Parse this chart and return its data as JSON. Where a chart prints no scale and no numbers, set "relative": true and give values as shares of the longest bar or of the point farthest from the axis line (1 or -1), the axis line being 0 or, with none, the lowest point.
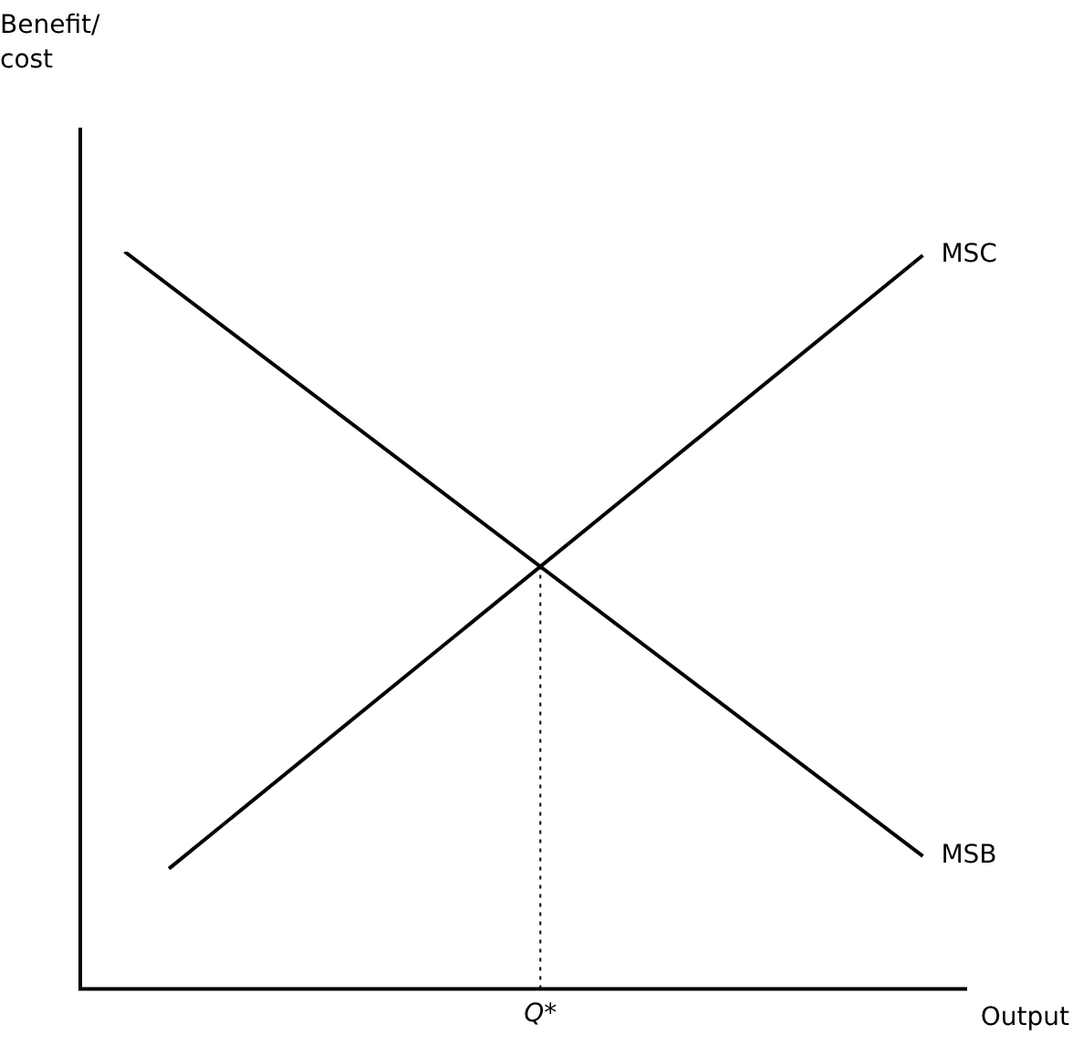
{
  "chart_data": {
    "type": "line",
    "relative": true,
    "annotations": [
      "Benefit/\ncost"
    ],
    "xlabel": "Output",
    "grid": false,
    "legend": false,
    "marker": "none",
    "line_style": "solid",
    "categories": [
      null,
      null,
      null,
      null,
      null,
      null,
      null,
      null,
      null,
      null,
      null,
      null,
      null,
      null,
      null,
      null,
      null,
      null,
      null,
      null,
      null
    ],
    "series": [
      {
        "name": "MSB",
        "color": "#000000",
        "values": [
          null,
          1,
          null,
          null,
          null,
          null,
          null,
          null,
          null,
          null,
          null,
          null,
          null,
          null,
          null,
          null,
          null,
          null,
          null,
          0.18,
          null
        ]
      },
      {
        "name": "MSC",
        "color": "#000000",
        "values": [
          null,
          null,
          0.163,
          null,
          null,
          null,
          null,
          null,
          null,
          null,
          null,
          null,
          null,
          null,
          null,
          null,
          null,
          null,
          null,
          0.995,
          null
        ]
      }
    ],
    "ref_lines": [
      {
        "axis": "x",
        "label": "Q*",
        "line_style": "dotted",
        "color": "#000000"
      }
    ]
  }
}
